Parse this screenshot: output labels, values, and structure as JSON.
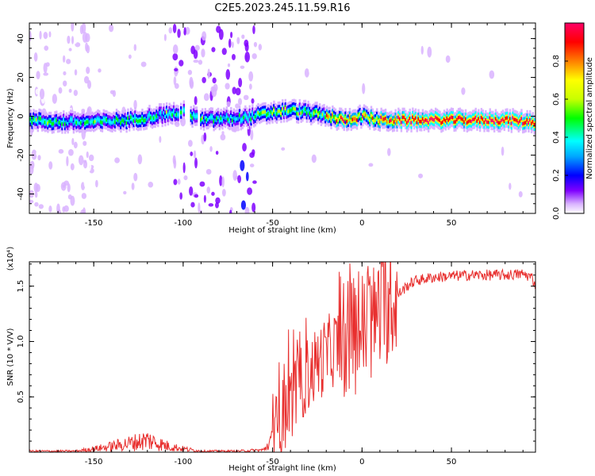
{
  "title": "C2E5.2023.245.11.59.R16",
  "chart_data": [
    {
      "type": "heatmap",
      "xlabel": "Height of straight line (km)",
      "ylabel": "Frequency (Hz)",
      "xlim": [
        -186,
        97
      ],
      "ylim": [
        -50,
        48
      ],
      "xticks": [
        -150,
        -100,
        -50,
        0,
        50
      ],
      "yticks": [
        -40,
        -20,
        0,
        20,
        40
      ],
      "colorbar": {
        "label": "Normalized spectral amplitude",
        "ticks": [
          "0.0",
          "0.2",
          "0.4",
          "0.6",
          "0.8"
        ],
        "range": [
          0,
          1
        ],
        "colors": [
          "#ffffff",
          "#d9b3ff",
          "#7f00ff",
          "#0000ff",
          "#00a8ff",
          "#00ffff",
          "#00ff00",
          "#c8ff00",
          "#ffff00",
          "#ff7f00",
          "#ff0000",
          "#ff0066"
        ]
      },
      "ridge": {
        "x": [
          -186,
          -170,
          -150,
          -130,
          -110,
          -100,
          -90,
          -70,
          -60,
          -50,
          -40,
          -30,
          -20,
          -10,
          0,
          10,
          20,
          40,
          60,
          80,
          97
        ],
        "y": [
          -2,
          -3,
          -3,
          -2,
          1,
          2,
          -2,
          -1,
          0,
          2,
          3,
          2,
          0,
          -2,
          0,
          -2,
          -2,
          -2,
          -2,
          -2,
          -3
        ]
      },
      "colors": {
        "ridge_peak": "#ff0000",
        "noise": "#7f00ff"
      }
    },
    {
      "type": "line",
      "xlabel": "Height of straight line (km)",
      "ylabel": "SNR (10 * V/V)",
      "ymultiplier": "(x10⁴)",
      "xlim": [
        -186,
        97
      ],
      "ylim": [
        0,
        1.72
      ],
      "xticks": [
        -150,
        -100,
        -50,
        0,
        50
      ],
      "yticks": [
        0.5,
        1.0,
        1.5
      ],
      "ytick_labels": [
        "0.5",
        "1.0",
        "1.5"
      ],
      "color": "#e8302f",
      "envelope": {
        "x": [
          -186,
          -160,
          -145,
          -130,
          -120,
          -110,
          -100,
          -90,
          -70,
          -55,
          -50,
          -45,
          -40,
          -35,
          -30,
          -25,
          -20,
          -15,
          -10,
          -5,
          0,
          5,
          10,
          15,
          20,
          25,
          30,
          40,
          50,
          60,
          70,
          80,
          90,
          95,
          97
        ],
        "y": [
          0.01,
          0.01,
          0.04,
          0.08,
          0.11,
          0.06,
          0.03,
          0.01,
          0.01,
          0.02,
          0.12,
          0.3,
          0.45,
          0.6,
          0.7,
          0.8,
          0.88,
          0.95,
          1.0,
          1.05,
          1.1,
          1.15,
          1.25,
          1.35,
          1.42,
          1.5,
          1.55,
          1.58,
          1.59,
          1.6,
          1.6,
          1.6,
          1.61,
          1.58,
          1.5
        ]
      }
    }
  ]
}
